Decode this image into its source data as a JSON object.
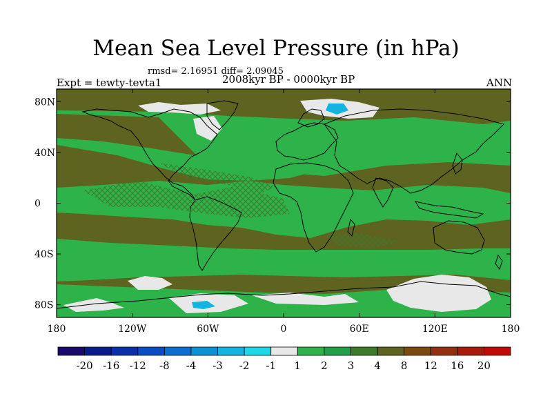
{
  "chart_data": {
    "type": "heatmap",
    "title": "Mean Sea Level Pressure (in hPa)",
    "stats": "rmsd= 2.16951 diff= 2.09045",
    "subtitle": "2008kyr BP - 0000kyr BP",
    "left_label": "Expt = tewty-tevta1",
    "right_label": "ANN",
    "y_ticks": [
      "80N",
      "40N",
      "0",
      "40S",
      "80S"
    ],
    "y_tick_values": [
      80,
      40,
      0,
      -40,
      -80
    ],
    "x_ticks": [
      "180",
      "120W",
      "60W",
      "0",
      "60E",
      "120E",
      "180"
    ],
    "x_tick_values": [
      -180,
      -120,
      -60,
      0,
      60,
      120,
      180
    ],
    "xlim": [
      -180,
      180
    ],
    "ylim": [
      -90,
      90
    ],
    "colorbar": {
      "levels": [
        "-20",
        "-16",
        "-12",
        "-8",
        "-4",
        "-3",
        "-2",
        "-1",
        "1",
        "2",
        "3",
        "4",
        "8",
        "12",
        "16",
        "20"
      ],
      "colors": [
        "#1a0a6b",
        "#0b1a8e",
        "#0a2fa8",
        "#0a4cc2",
        "#0a6fd0",
        "#0a92d8",
        "#14b4e0",
        "#1ed8e8",
        "#e8e8e8",
        "#2db34a",
        "#21a04a",
        "#3d7a2c",
        "#5e6420",
        "#7a4a10",
        "#923010",
        "#a81a0a",
        "#c00a0a"
      ]
    },
    "map_colors": {
      "brown": "#5e6420",
      "dark_green": "#3d7a2c",
      "green": "#2db34a",
      "white": "#e8e8e8",
      "cyan": "#1ed8e8",
      "light_blue": "#14b4e0"
    }
  }
}
